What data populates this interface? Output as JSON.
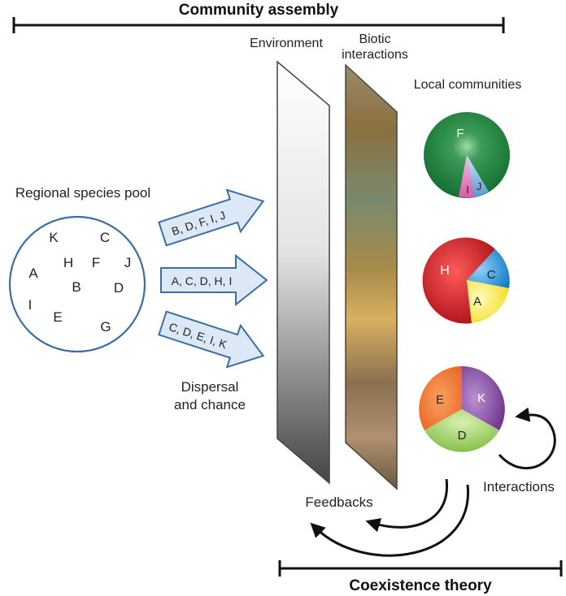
{
  "header": {
    "title": "Community assembly"
  },
  "footer": {
    "title": "Coexistence theory"
  },
  "pool": {
    "label": "Regional species pool",
    "species": [
      "K",
      "C",
      "A",
      "H",
      "F",
      "J",
      "B",
      "D",
      "I",
      "E",
      "G"
    ]
  },
  "arrows": [
    {
      "label": "B, D, F, I, J"
    },
    {
      "label": "A, C, D, H, I"
    },
    {
      "label": "C, D, E, I, K"
    }
  ],
  "dispersal": {
    "line1": "Dispersal",
    "line2": "and chance"
  },
  "filters": {
    "environment": "Environment",
    "biotic_line1": "Biotic",
    "biotic_line2": "interactions"
  },
  "communities": {
    "label": "Local communities",
    "items": [
      {
        "slices": [
          {
            "species": "F",
            "color": "#1e7a3c"
          },
          {
            "species": "I",
            "color": "#e07ab8"
          },
          {
            "species": "J",
            "color": "#6fa6d8"
          }
        ]
      },
      {
        "slices": [
          {
            "species": "H",
            "color": "#c8161d"
          },
          {
            "species": "C",
            "color": "#1c8ad0"
          },
          {
            "species": "A",
            "color": "#f6e92a"
          }
        ]
      },
      {
        "slices": [
          {
            "species": "E",
            "color": "#ee6a24"
          },
          {
            "species": "K",
            "color": "#7e3d96"
          },
          {
            "species": "D",
            "color": "#8cc64a"
          }
        ]
      }
    ]
  },
  "loops": {
    "feedbacks": "Feedbacks",
    "interactions": "Interactions"
  },
  "colors": {
    "pool_stroke": "#3b6ea5",
    "arrow_fill": "#dce8f6",
    "arrow_stroke": "#3b6ea5",
    "text": "#222222"
  }
}
